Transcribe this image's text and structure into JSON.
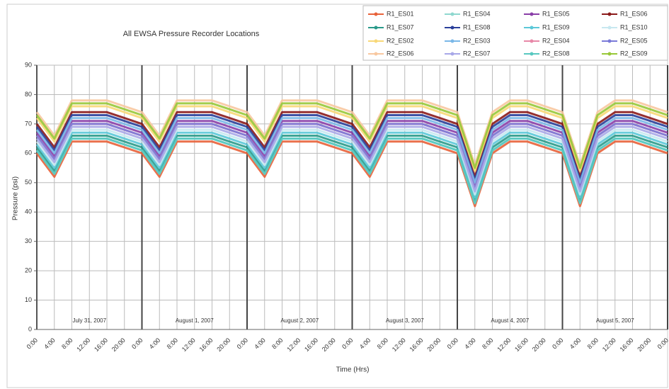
{
  "chart_data": {
    "type": "line",
    "title": "All EWSA Pressure Recorder Locations",
    "y_label": "Pressure (psi)",
    "x_label": "Time (Hrs)",
    "annotations": [
      "July 31, 2007",
      "August 1, 2007",
      "August 2, 2007",
      "August 3, 2007",
      "August 4, 2007",
      "August 5, 2007"
    ],
    "categories": [
      "0:00",
      "4:00",
      "8:00",
      "12:00",
      "16:00",
      "20:00",
      "0:00",
      "4:00",
      "8:00",
      "12:00",
      "16:00",
      "20:00",
      "0:00",
      "4:00",
      "8:00",
      "12:00",
      "16:00",
      "20:00",
      "0:00",
      "4:00",
      "8:00",
      "12:00",
      "16:00",
      "20:00",
      "0:00",
      "4:00",
      "8:00",
      "12:00",
      "16:00",
      "20:00",
      "0:00",
      "4:00",
      "8:00",
      "12:00",
      "16:00",
      "20:00",
      "0:00"
    ],
    "ylim": [
      0,
      90
    ],
    "yticks": [
      0,
      10,
      20,
      30,
      40,
      50,
      60,
      70,
      80,
      90
    ],
    "grid": true,
    "legend": "top-right",
    "series": [
      {
        "name": "R1_ES01",
        "color": "#e8623a",
        "values": [
          60,
          52,
          64,
          64,
          64,
          62,
          60,
          52,
          64,
          64,
          64,
          62,
          60,
          52,
          64,
          64,
          64,
          62,
          60,
          52,
          64,
          64,
          64,
          62,
          60,
          42,
          60,
          64,
          64,
          62,
          60,
          42,
          60,
          64,
          64,
          62,
          60
        ]
      },
      {
        "name": "R1_ES04",
        "color": "#8fd8cf",
        "values": [
          61,
          53,
          65,
          65,
          65,
          63,
          61,
          53,
          65,
          65,
          65,
          63,
          61,
          53,
          65,
          65,
          65,
          63,
          61,
          53,
          65,
          65,
          65,
          63,
          61,
          43,
          61,
          65,
          65,
          63,
          61,
          43,
          61,
          65,
          65,
          63,
          61
        ]
      },
      {
        "name": "R1_ES05",
        "color": "#8a3fa8",
        "values": [
          67,
          59,
          71,
          71,
          71,
          69,
          67,
          59,
          71,
          71,
          71,
          69,
          67,
          59,
          71,
          71,
          71,
          69,
          67,
          59,
          71,
          71,
          71,
          69,
          67,
          49,
          67,
          71,
          71,
          69,
          67,
          49,
          67,
          71,
          71,
          69,
          67
        ]
      },
      {
        "name": "R1_ES06",
        "color": "#8b1a1a",
        "values": [
          70,
          62,
          74,
          74,
          74,
          72,
          70,
          62,
          74,
          74,
          74,
          72,
          70,
          62,
          74,
          74,
          74,
          72,
          70,
          62,
          74,
          74,
          74,
          72,
          70,
          52,
          70,
          74,
          74,
          72,
          70,
          52,
          70,
          74,
          74,
          72,
          70
        ]
      },
      {
        "name": "R1_ES07",
        "color": "#2a9a8a",
        "values": [
          62,
          54,
          66,
          66,
          66,
          64,
          62,
          54,
          66,
          66,
          66,
          64,
          62,
          54,
          66,
          66,
          66,
          64,
          62,
          54,
          66,
          66,
          66,
          64,
          62,
          44,
          62,
          66,
          66,
          64,
          62,
          44,
          62,
          66,
          66,
          64,
          62
        ]
      },
      {
        "name": "R1_ES08",
        "color": "#2a3f9a",
        "values": [
          69,
          61,
          73,
          73,
          73,
          71,
          69,
          61,
          73,
          73,
          73,
          71,
          69,
          61,
          73,
          73,
          73,
          71,
          69,
          61,
          73,
          73,
          73,
          71,
          69,
          51,
          69,
          73,
          73,
          71,
          69,
          51,
          69,
          73,
          73,
          71,
          69
        ]
      },
      {
        "name": "R1_ES09",
        "color": "#5bc8d8",
        "values": [
          63,
          55,
          67,
          67,
          67,
          65,
          63,
          55,
          67,
          67,
          67,
          65,
          63,
          55,
          67,
          67,
          67,
          65,
          63,
          55,
          67,
          67,
          67,
          65,
          63,
          45,
          63,
          67,
          67,
          65,
          63,
          45,
          63,
          67,
          67,
          65,
          63
        ]
      },
      {
        "name": "R1_ES10",
        "color": "#c8e8f0",
        "values": [
          64,
          56,
          68,
          68,
          68,
          66,
          64,
          56,
          68,
          68,
          68,
          66,
          64,
          56,
          68,
          68,
          68,
          66,
          64,
          56,
          68,
          68,
          68,
          66,
          64,
          46,
          64,
          68,
          68,
          66,
          64,
          46,
          64,
          68,
          68,
          66,
          64
        ]
      },
      {
        "name": "R2_ES02",
        "color": "#f8d878",
        "values": [
          72,
          64,
          76,
          76,
          76,
          74,
          72,
          64,
          76,
          76,
          76,
          74,
          72,
          64,
          76,
          76,
          76,
          74,
          72,
          64,
          76,
          76,
          76,
          74,
          72,
          54,
          72,
          76,
          76,
          74,
          72,
          54,
          72,
          76,
          76,
          74,
          72
        ]
      },
      {
        "name": "R2_ES03",
        "color": "#7ab8e8",
        "values": [
          68,
          60,
          72,
          72,
          72,
          70,
          68,
          60,
          72,
          72,
          72,
          70,
          68,
          60,
          72,
          72,
          72,
          70,
          68,
          60,
          72,
          72,
          72,
          70,
          68,
          50,
          68,
          72,
          72,
          70,
          68,
          50,
          68,
          72,
          72,
          70,
          68
        ]
      },
      {
        "name": "R2_ES04",
        "color": "#e888a8",
        "values": [
          66,
          58,
          70,
          70,
          70,
          68,
          66,
          58,
          70,
          70,
          70,
          68,
          66,
          58,
          70,
          70,
          70,
          68,
          66,
          58,
          70,
          70,
          70,
          68,
          66,
          48,
          66,
          70,
          70,
          68,
          66,
          48,
          66,
          70,
          70,
          68,
          66
        ]
      },
      {
        "name": "R2_ES05",
        "color": "#7a7ad8",
        "values": [
          66,
          58,
          70,
          70,
          70,
          68,
          66,
          58,
          70,
          70,
          70,
          68,
          66,
          58,
          70,
          70,
          70,
          68,
          66,
          58,
          70,
          70,
          70,
          68,
          66,
          48,
          66,
          70,
          70,
          68,
          66,
          48,
          66,
          70,
          70,
          68,
          66
        ]
      },
      {
        "name": "R2_ES06",
        "color": "#f8c8a0",
        "values": [
          74,
          66,
          78,
          78,
          78,
          76,
          74,
          66,
          78,
          78,
          78,
          76,
          74,
          66,
          78,
          78,
          78,
          76,
          74,
          66,
          78,
          78,
          78,
          76,
          74,
          56,
          74,
          78,
          78,
          76,
          74,
          56,
          74,
          78,
          78,
          76,
          74
        ]
      },
      {
        "name": "R2_ES07",
        "color": "#a8a8e8",
        "values": [
          65,
          57,
          69,
          69,
          69,
          67,
          65,
          57,
          69,
          69,
          69,
          67,
          65,
          57,
          69,
          69,
          69,
          67,
          65,
          57,
          69,
          69,
          69,
          67,
          65,
          47,
          65,
          69,
          69,
          67,
          65,
          47,
          65,
          69,
          69,
          67,
          65
        ]
      },
      {
        "name": "R2_ES08",
        "color": "#58c8c0",
        "values": [
          61,
          53,
          65,
          65,
          65,
          63,
          61,
          53,
          65,
          65,
          65,
          63,
          61,
          53,
          65,
          65,
          65,
          63,
          61,
          53,
          65,
          65,
          65,
          63,
          61,
          43,
          61,
          65,
          65,
          63,
          61,
          43,
          61,
          65,
          65,
          63,
          61
        ]
      },
      {
        "name": "R2_ES09",
        "color": "#98c838",
        "values": [
          73,
          65,
          77,
          77,
          77,
          75,
          73,
          65,
          77,
          77,
          77,
          75,
          73,
          65,
          77,
          77,
          77,
          75,
          73,
          65,
          77,
          77,
          77,
          75,
          73,
          55,
          73,
          77,
          77,
          75,
          73,
          55,
          73,
          77,
          77,
          75,
          73
        ]
      }
    ]
  }
}
